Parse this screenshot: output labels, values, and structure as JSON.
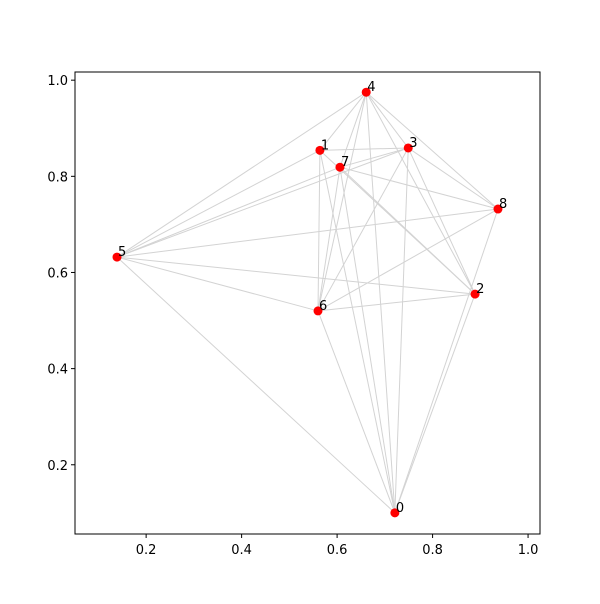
{
  "chart_data": {
    "type": "scatter",
    "labels": [
      "0",
      "1",
      "2",
      "3",
      "4",
      "5",
      "6",
      "7",
      "8"
    ],
    "x": [
      0.721,
      0.564,
      0.889,
      0.749,
      0.661,
      0.139,
      0.56,
      0.606,
      0.937
    ],
    "y": [
      0.1,
      0.854,
      0.555,
      0.859,
      0.975,
      0.632,
      0.52,
      0.819,
      0.732
    ],
    "color": "#ff0000",
    "edge_color": "#d3d3d3",
    "edges": [
      [
        4,
        5
      ],
      [
        4,
        1
      ],
      [
        4,
        3
      ],
      [
        4,
        8
      ],
      [
        4,
        2
      ],
      [
        4,
        6
      ],
      [
        4,
        0
      ],
      [
        4,
        7
      ],
      [
        5,
        1
      ],
      [
        5,
        7
      ],
      [
        5,
        3
      ],
      [
        5,
        8
      ],
      [
        5,
        2
      ],
      [
        5,
        6
      ],
      [
        5,
        0
      ],
      [
        0,
        6
      ],
      [
        0,
        2
      ],
      [
        0,
        8
      ],
      [
        0,
        3
      ],
      [
        0,
        1
      ],
      [
        0,
        7
      ],
      [
        1,
        3
      ],
      [
        1,
        2
      ],
      [
        1,
        6
      ],
      [
        7,
        8
      ],
      [
        7,
        2
      ],
      [
        7,
        6
      ],
      [
        3,
        2
      ],
      [
        3,
        8
      ],
      [
        3,
        6
      ],
      [
        6,
        8
      ],
      [
        6,
        2
      ],
      [
        3,
        7
      ]
    ],
    "xlim": [
      0.051,
      1.025
    ],
    "ylim": [
      0.056,
      1.017
    ],
    "xticks": [
      0.2,
      0.4,
      0.6,
      0.8,
      {
        "value": 1,
        "label": "1.0"
      }
    ],
    "yticks": [
      0.2,
      0.4,
      0.6,
      0.8,
      {
        "value": 1,
        "label": "1.0"
      }
    ]
  }
}
